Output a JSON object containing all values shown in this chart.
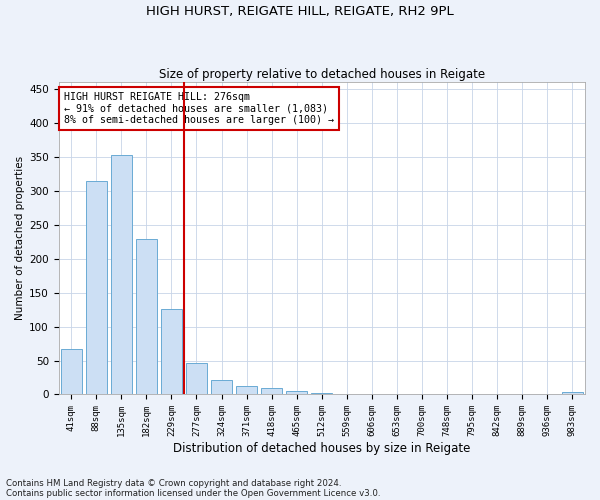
{
  "title1": "HIGH HURST, REIGATE HILL, REIGATE, RH2 9PL",
  "title2": "Size of property relative to detached houses in Reigate",
  "xlabel": "Distribution of detached houses by size in Reigate",
  "ylabel": "Number of detached properties",
  "categories": [
    "41sqm",
    "88sqm",
    "135sqm",
    "182sqm",
    "229sqm",
    "277sqm",
    "324sqm",
    "371sqm",
    "418sqm",
    "465sqm",
    "512sqm",
    "559sqm",
    "606sqm",
    "653sqm",
    "700sqm",
    "748sqm",
    "795sqm",
    "842sqm",
    "889sqm",
    "936sqm",
    "983sqm"
  ],
  "values": [
    67,
    314,
    352,
    229,
    126,
    46,
    22,
    13,
    10,
    5,
    2,
    1,
    1,
    0,
    0,
    0,
    0,
    0,
    0,
    0,
    3
  ],
  "bar_color": "#ccdff4",
  "bar_edge_color": "#6aaad4",
  "vline_color": "#cc0000",
  "vline_x": 4.5,
  "annotation_text": "HIGH HURST REIGATE HILL: 276sqm\n← 91% of detached houses are smaller (1,083)\n8% of semi-detached houses are larger (100) →",
  "annotation_box_color": "#cc0000",
  "ylim": [
    0,
    460
  ],
  "yticks": [
    0,
    50,
    100,
    150,
    200,
    250,
    300,
    350,
    400,
    450
  ],
  "footnote1": "Contains HM Land Registry data © Crown copyright and database right 2024.",
  "footnote2": "Contains public sector information licensed under the Open Government Licence v3.0.",
  "background_color": "#edf2fa",
  "plot_background": "#ffffff",
  "grid_color": "#c8d4e8"
}
